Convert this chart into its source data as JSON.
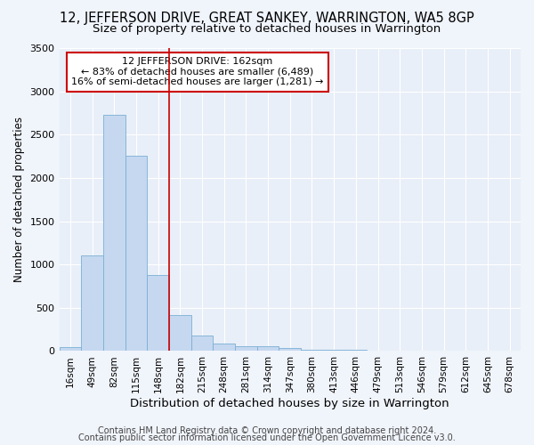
{
  "title": "12, JEFFERSON DRIVE, GREAT SANKEY, WARRINGTON, WA5 8GP",
  "subtitle": "Size of property relative to detached houses in Warrington",
  "xlabel": "Distribution of detached houses by size in Warrington",
  "ylabel": "Number of detached properties",
  "categories": [
    "16sqm",
    "49sqm",
    "82sqm",
    "115sqm",
    "148sqm",
    "182sqm",
    "215sqm",
    "248sqm",
    "281sqm",
    "314sqm",
    "347sqm",
    "380sqm",
    "413sqm",
    "446sqm",
    "479sqm",
    "513sqm",
    "546sqm",
    "579sqm",
    "612sqm",
    "645sqm",
    "678sqm"
  ],
  "values": [
    50,
    1100,
    2730,
    2260,
    875,
    415,
    175,
    90,
    60,
    55,
    35,
    20,
    15,
    10,
    5,
    3,
    2,
    1,
    1,
    1,
    1
  ],
  "bar_color": "#c5d8f0",
  "bar_edgecolor": "#7bafd4",
  "vline_color": "#cc0000",
  "vline_x_idx": 4.5,
  "ylim": [
    0,
    3500
  ],
  "yticks": [
    0,
    500,
    1000,
    1500,
    2000,
    2500,
    3000,
    3500
  ],
  "annotation_title": "12 JEFFERSON DRIVE: 162sqm",
  "annotation_line1": "← 83% of detached houses are smaller (6,489)",
  "annotation_line2": "16% of semi-detached houses are larger (1,281) →",
  "annotation_box_color": "#cc0000",
  "footer1": "Contains HM Land Registry data © Crown copyright and database right 2024.",
  "footer2": "Contains public sector information licensed under the Open Government Licence v3.0.",
  "bg_color": "#f0f4fb",
  "plot_bg_color": "#e8eff8",
  "title_fontsize": 10.5,
  "subtitle_fontsize": 9.5,
  "xlabel_fontsize": 9.5,
  "ylabel_fontsize": 8.5,
  "tick_fontsize": 7.5,
  "ytick_fontsize": 8,
  "footer_fontsize": 7,
  "annotation_fontsize": 8
}
